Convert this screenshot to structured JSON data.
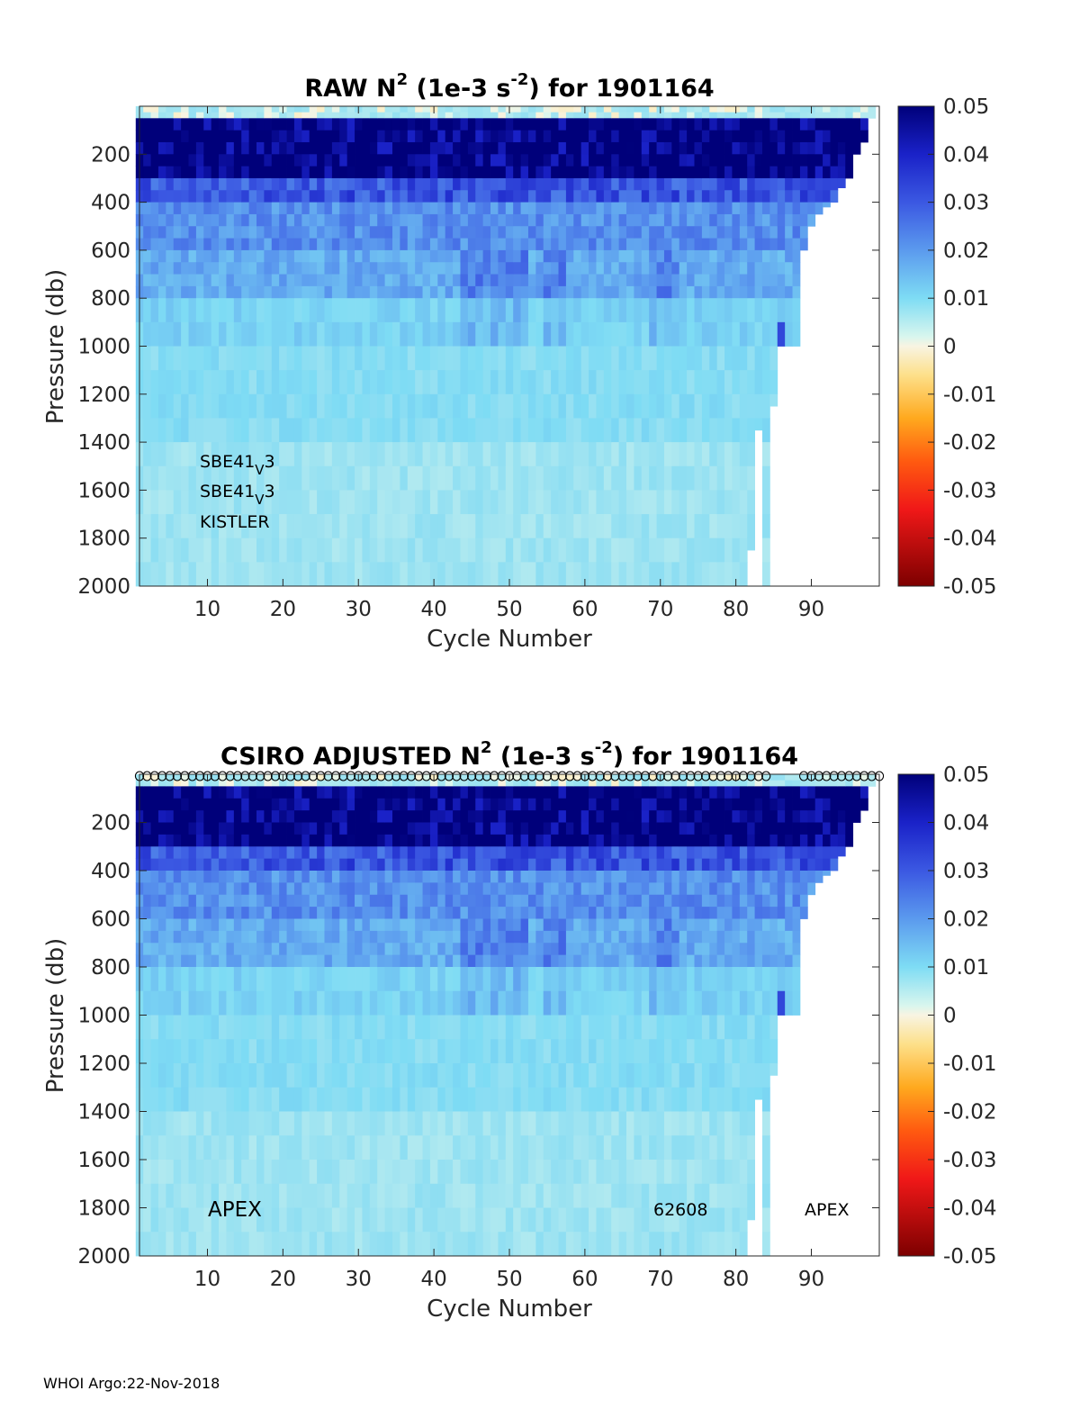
{
  "chart_data": [
    {
      "type": "heatmap",
      "title_pre": "RAW N",
      "title_sup1": "2",
      "title_mid": " (1e-3 s",
      "title_sup2": "-2",
      "title_post": ") for 1901164",
      "xlabel": "Cycle Number",
      "ylabel": "Pressure (db)",
      "xlim": [
        1,
        99
      ],
      "ylim": [
        0,
        2000
      ],
      "y_reversed": true,
      "xticks": [
        "10",
        "20",
        "30",
        "40",
        "50",
        "60",
        "70",
        "80",
        "90"
      ],
      "yticks": [
        "200",
        "400",
        "600",
        "800",
        "1000",
        "1200",
        "1400",
        "1600",
        "1800",
        "2000"
      ],
      "colorbar": {
        "clim": [
          -0.05,
          0.05
        ],
        "ticks": [
          "0.05",
          "0.04",
          "0.03",
          "0.02",
          "0.01",
          "0",
          "-0.01",
          "-0.02",
          "-0.03",
          "-0.04",
          "-0.05"
        ]
      },
      "n_cycles": 98,
      "pressure_levels": [
        0,
        25,
        50,
        100,
        150,
        200,
        250,
        300,
        350,
        400,
        450,
        500,
        550,
        600,
        650,
        700,
        750,
        800,
        900,
        1000,
        1100,
        1200,
        1300,
        1400,
        1500,
        1600,
        1700,
        1800,
        1900,
        2000
      ],
      "annotations": {
        "sensor1": "SBE41",
        "sensor1_sub": "V",
        "sensor1_end": "3",
        "sensor2": "SBE41",
        "sensor2_sub": "V",
        "sensor2_end": "3",
        "sensor3": "KISTLER"
      },
      "approx_n2_by_depth": [
        {
          "p": 100,
          "value": 0.05
        },
        {
          "p": 250,
          "value": 0.045
        },
        {
          "p": 400,
          "value": 0.025
        },
        {
          "p": 600,
          "value": 0.02
        },
        {
          "p": 800,
          "value": 0.012
        },
        {
          "p": 1000,
          "value": 0.009
        },
        {
          "p": 1400,
          "value": 0.007
        },
        {
          "p": 2000,
          "value": 0.006
        }
      ]
    },
    {
      "type": "heatmap",
      "title_pre": "CSIRO  ADJUSTED N",
      "title_sup1": "2",
      "title_mid": " (1e-3 s",
      "title_sup2": "-2",
      "title_post": ") for 1901164",
      "xlabel": "Cycle Number",
      "ylabel": "Pressure (db)",
      "xlim": [
        1,
        99
      ],
      "ylim": [
        0,
        2000
      ],
      "y_reversed": true,
      "xticks": [
        "10",
        "20",
        "30",
        "40",
        "50",
        "60",
        "70",
        "80",
        "90"
      ],
      "yticks": [
        "200",
        "400",
        "600",
        "800",
        "1000",
        "1200",
        "1400",
        "1600",
        "1800",
        "2000"
      ],
      "colorbar": {
        "clim": [
          -0.05,
          0.05
        ],
        "ticks": [
          "0.05",
          "0.04",
          "0.03",
          "0.02",
          "0.01",
          "0",
          "-0.01",
          "-0.02",
          "-0.03",
          "-0.04",
          "-0.05"
        ]
      },
      "n_cycles": 98,
      "annotations": {
        "left": "APEX",
        "mid": "62608",
        "right": "APEX"
      },
      "qc_markers_cycle_range": [
        1,
        99
      ]
    }
  ],
  "footer": "WHOI Argo:22-Nov-2018",
  "colors": {
    "deep_blue": "#000a80",
    "mid_blue": "#3d5ce0",
    "light_blue": "#8ed0f2",
    "cyan_pale": "#c8f3f0",
    "neg_orange": "#ff5a10"
  }
}
